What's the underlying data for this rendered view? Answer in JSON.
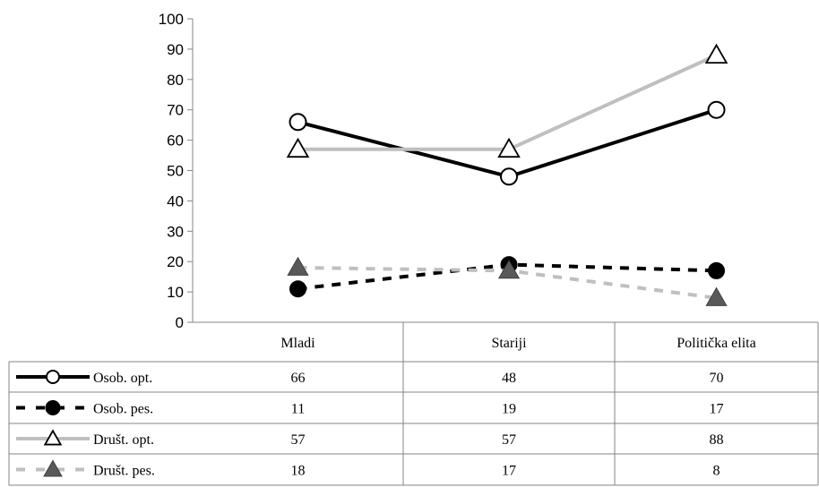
{
  "chart_data": {
    "type": "line",
    "categories": [
      "Mladi",
      "Stariji",
      "Politička elita"
    ],
    "ylim": [
      0,
      100
    ],
    "yticks": [
      0,
      10,
      20,
      30,
      40,
      50,
      60,
      70,
      80,
      90,
      100
    ],
    "grid": false,
    "legend": "data-table-left",
    "series": [
      {
        "name": "Osob. opt.",
        "values": [
          66,
          48,
          70
        ],
        "color": "#000000",
        "dash": "solid",
        "marker": "open-circle"
      },
      {
        "name": "Osob. pes.",
        "values": [
          11,
          19,
          17
        ],
        "color": "#000000",
        "dash": "dashed",
        "marker": "filled-circle"
      },
      {
        "name": "Društ. opt.",
        "values": [
          57,
          57,
          88
        ],
        "color": "#bfbfbf",
        "dash": "solid",
        "marker": "open-triangle"
      },
      {
        "name": "Društ. pes.",
        "values": [
          18,
          17,
          8
        ],
        "color": "#bfbfbf",
        "dash": "dashed",
        "marker": "filled-triangle"
      }
    ]
  }
}
